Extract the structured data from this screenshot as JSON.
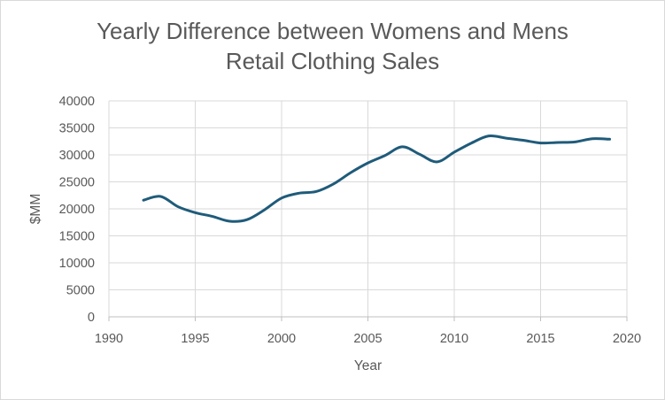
{
  "chart_data": {
    "type": "line",
    "title": "Yearly Difference between Womens and Mens Retail Clothing Sales",
    "title_lines": [
      "Yearly Difference between Womens and Mens",
      "Retail Clothing Sales"
    ],
    "xlabel": "Year",
    "ylabel": "$MM",
    "xlim": [
      1990,
      2020
    ],
    "ylim": [
      0,
      40000
    ],
    "x_ticks": [
      1990,
      1995,
      2000,
      2005,
      2010,
      2015,
      2020
    ],
    "y_ticks": [
      0,
      5000,
      10000,
      15000,
      20000,
      25000,
      30000,
      35000,
      40000
    ],
    "grid": true,
    "legend": "none",
    "series": [
      {
        "color": "#1f5b7a",
        "x": [
          1992,
          1993,
          1994,
          1995,
          1996,
          1997,
          1998,
          1999,
          2000,
          2001,
          2002,
          2003,
          2004,
          2005,
          2006,
          2007,
          2008,
          2009,
          2010,
          2011,
          2012,
          2013,
          2014,
          2015,
          2016,
          2017,
          2018,
          2019
        ],
        "y": [
          21600,
          22300,
          20400,
          19300,
          18600,
          17700,
          18000,
          19800,
          22000,
          22900,
          23200,
          24600,
          26700,
          28500,
          29900,
          31500,
          30100,
          28700,
          30500,
          32200,
          33500,
          33100,
          32700,
          32200,
          32300,
          32400,
          33000,
          32900
        ]
      }
    ]
  }
}
